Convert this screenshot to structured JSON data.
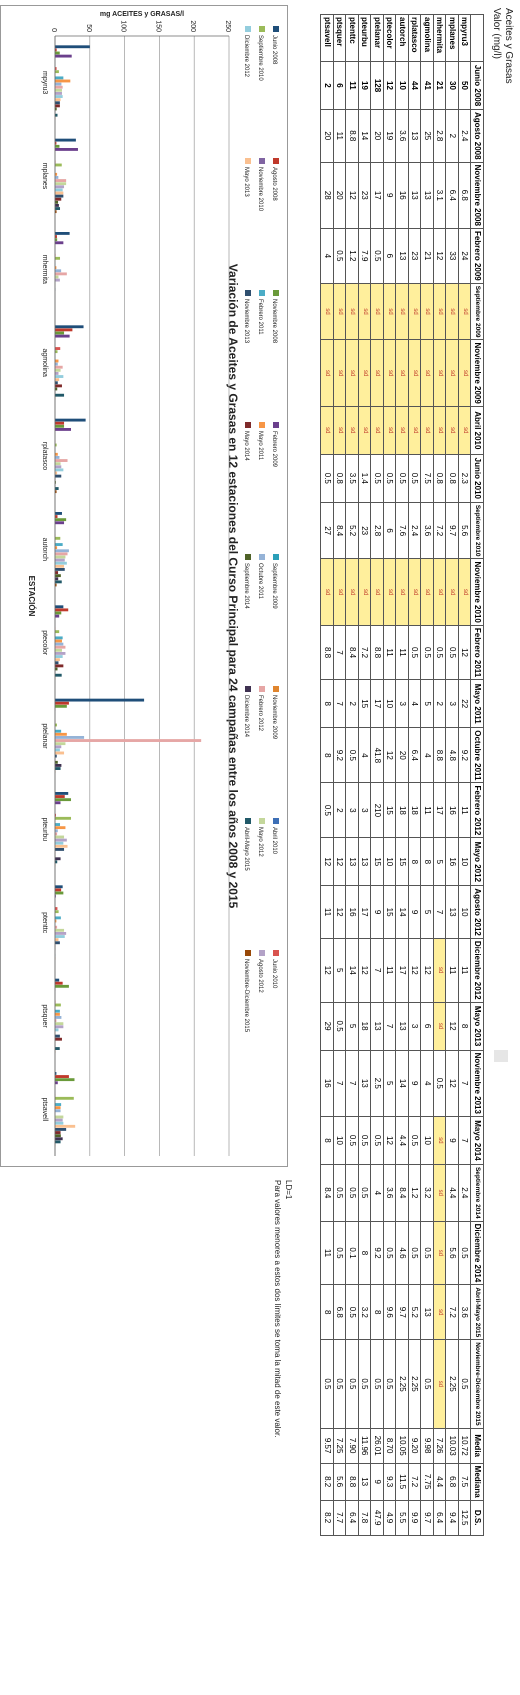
{
  "header": {
    "title": "Aceites y Grasas",
    "unit": "Valor (mg/l)"
  },
  "notes": [
    "LD=1",
    "Para valores menores a estos dos límites se toma la mitad de este valor."
  ],
  "table": {
    "columns": [
      "Junio 2008",
      "Agosto 2008",
      "Noviembre 2008",
      "Febrero 2009",
      "Septiembre 2009",
      "Noviembre 2009",
      "Abril 2010",
      "Junio 2010",
      "Septiembre 2010",
      "Noviembre 2010",
      "Febrero 2011",
      "Mayo 2011",
      "Octubre 2011",
      "Febrero 2012",
      "Mayo 2012",
      "Agosto 2012",
      "Diciembre 2012",
      "Mayo 2013",
      "Noviembre 2013",
      "Mayo 2014",
      "Septiembre 2014",
      "Diciembre 2014",
      "Abril-Mayo 2015",
      "Noviembre-Diciembre 2015",
      "Media",
      "Mediana",
      "D.S."
    ],
    "rows": [
      {
        "station": "mpyru3",
        "cells": [
          "50",
          "2.4",
          "6.8",
          "24",
          "sd",
          "sd",
          "sd",
          "2.3",
          "5.6",
          "sd",
          "12",
          "22",
          "9.2",
          "11",
          "10",
          "10",
          "11",
          "8",
          "7",
          "7",
          "2.4",
          "0.5",
          "3.6",
          "0.5",
          "10.72",
          "7.5",
          "12.5"
        ]
      },
      {
        "station": "mplanes",
        "cells": [
          "30",
          "2",
          "6.4",
          "33",
          "sd",
          "sd",
          "sd",
          "0.8",
          "9.7",
          "sd",
          "0.5",
          "3",
          "4.8",
          "16",
          "16",
          "13",
          "11",
          "12",
          "12",
          "9",
          "4.4",
          "5.6",
          "7.2",
          "2.25",
          "10.03",
          "6.8",
          "9.4"
        ]
      },
      {
        "station": "mhermita",
        "cells": [
          "21",
          "2.8",
          "3.1",
          "12",
          "sd",
          "sd",
          "sd",
          "0.8",
          "7.2",
          "sd",
          "0.5",
          "2",
          "8.8",
          "17",
          "5",
          "7",
          "sd",
          "sd",
          "0.5",
          "sd",
          "sd",
          "sd",
          "sd",
          "sd",
          "7.26",
          "4.4",
          "6.4"
        ]
      },
      {
        "station": "agmolina",
        "cells": [
          "41",
          "25",
          "13",
          "21",
          "sd",
          "sd",
          "sd",
          "7.5",
          "3.6",
          "sd",
          "0.5",
          "5",
          "4",
          "11",
          "8",
          "5",
          "12",
          "6",
          "4",
          "10",
          "3.2",
          "0.5",
          "13",
          "0.5",
          "9.98",
          "7.75",
          "9.7"
        ]
      },
      {
        "station": "rplatasco",
        "cells": [
          "44",
          "13",
          "13",
          "23",
          "sd",
          "sd",
          "sd",
          "0.5",
          "2.4",
          "sd",
          "0.5",
          "4",
          "6.4",
          "18",
          "8",
          "9",
          "12",
          "3",
          "9",
          "0.5",
          "1.2",
          "0.5",
          "5.2",
          "2.25",
          "9.20",
          "7.2",
          "9.9"
        ]
      },
      {
        "station": "autorch",
        "cells": [
          "10",
          "3.6",
          "16",
          "13",
          "sd",
          "sd",
          "sd",
          "0.5",
          "7.6",
          "sd",
          "11",
          "3",
          "20",
          "18",
          "15",
          "14",
          "17",
          "13",
          "14",
          "4.4",
          "8.4",
          "4.6",
          "9.7",
          "2.25",
          "10.05",
          "11.5",
          "5.5"
        ]
      },
      {
        "station": "ptecolor",
        "cells": [
          "12",
          "19",
          "9",
          "6",
          "sd",
          "sd",
          "sd",
          "0.5",
          "6",
          "sd",
          "11",
          "10",
          "12",
          "15",
          "10",
          "15",
          "11",
          "7",
          "5",
          "12",
          "3.6",
          "0.5",
          "9.6",
          "0.5",
          "8.70",
          "9.3",
          "4.9"
        ]
      },
      {
        "station": "ptelanar",
        "cells": [
          "128",
          "20",
          "17",
          "0.5",
          "sd",
          "sd",
          "sd",
          "0.5",
          "2.8",
          "sd",
          "8.8",
          "17",
          "41.8",
          "210",
          "15",
          "9",
          "7",
          "13",
          "2.5",
          "0.5",
          "4",
          "9.2",
          "8",
          "0.5",
          "26.01",
          "9",
          "47.9"
        ]
      },
      {
        "station": "pteurbu",
        "cells": [
          "19",
          "14",
          "23",
          "7.9",
          "sd",
          "sd",
          "sd",
          "1.4",
          "23",
          "sd",
          "7.2",
          "15",
          "4",
          "3",
          "13",
          "17",
          "12",
          "18",
          "13",
          "0.5",
          "0.5",
          "8",
          "3.2",
          "0.5",
          "11.96",
          "13",
          "7.8"
        ]
      },
      {
        "station": "ptenttc",
        "cells": [
          "11",
          "8.8",
          "12",
          "1.2",
          "sd",
          "sd",
          "sd",
          "3.5",
          "5.2",
          "sd",
          "8.4",
          "2",
          "0.5",
          "3",
          "13",
          "16",
          "14",
          "5",
          "7",
          "0.5",
          "0.5",
          "0.1",
          "0.5",
          "0.5",
          "7.90",
          "8.8",
          "6.4"
        ]
      },
      {
        "station": "ptsquer",
        "cells": [
          "6",
          "11",
          "20",
          "0.5",
          "sd",
          "sd",
          "sd",
          "0.8",
          "8.4",
          "sd",
          "7",
          "7",
          "9.2",
          "2",
          "12",
          "12",
          "5",
          "0.5",
          "7",
          "10",
          "0.5",
          "0.5",
          "6.8",
          "0.5",
          "7.25",
          "5.6",
          "7.7"
        ]
      },
      {
        "station": "ptsavell",
        "cells": [
          "2",
          "20",
          "28",
          "4",
          "sd",
          "sd",
          "sd",
          "0.5",
          "27",
          "sd",
          "8.8",
          "8",
          "8",
          "0.5",
          "12",
          "11",
          "12",
          "29",
          "16",
          "8",
          "8.4",
          "11",
          "8",
          "0.5",
          "9.57",
          "8.2",
          "8.2"
        ]
      }
    ]
  },
  "chart_data": {
    "type": "bar",
    "title": "Variación de Aceites y Grasas en 12 estaciones del Curso Principal para 24 campañas entre los años 2008 y 2015",
    "xlabel": "ESTACIÓN",
    "ylabel": "mg ACEITES y GRASAS/l",
    "ylim": [
      0,
      250
    ],
    "yticks": [
      0,
      50,
      100,
      150,
      200,
      250
    ],
    "categories": [
      "mpyru3",
      "mplanes",
      "mhermita",
      "agmolina",
      "rplatasco",
      "autorch",
      "ptecolor",
      "ptelanar",
      "pteurbu",
      "ptenttc",
      "ptsquer",
      "ptsavell"
    ],
    "series": [
      {
        "name": "Junio 2008",
        "color": "#1f4e79",
        "values": [
          50,
          30,
          21,
          41,
          44,
          10,
          12,
          128,
          19,
          11,
          6,
          2
        ]
      },
      {
        "name": "Agosto 2008",
        "color": "#c0392b",
        "values": [
          2.4,
          2,
          2.8,
          25,
          13,
          3.6,
          19,
          20,
          14,
          8.8,
          11,
          20
        ]
      },
      {
        "name": "Noviembre 2008",
        "color": "#6a9a3a",
        "values": [
          6.8,
          6.4,
          3.1,
          13,
          13,
          16,
          9,
          17,
          23,
          12,
          20,
          28
        ]
      },
      {
        "name": "Febrero 2009",
        "color": "#6b3f8c",
        "values": [
          24,
          33,
          12,
          21,
          23,
          13,
          6,
          0.5,
          7.9,
          1.2,
          0.5,
          4
        ]
      },
      {
        "name": "Septiembre 2009",
        "color": "#2a9fb8",
        "values": [
          0,
          0,
          0,
          0,
          0,
          0,
          0,
          0,
          0,
          0,
          0,
          0
        ]
      },
      {
        "name": "Noviembre 2009",
        "color": "#e0852e",
        "values": [
          0,
          0,
          0,
          0,
          0,
          0,
          0,
          0,
          0,
          0,
          0,
          0
        ]
      },
      {
        "name": "Abril 2010",
        "color": "#3d6fb6",
        "values": [
          0,
          0,
          0,
          0,
          0,
          0,
          0,
          0,
          0,
          0,
          0,
          0
        ]
      },
      {
        "name": "Junio 2010",
        "color": "#d9534f",
        "values": [
          2.3,
          0.8,
          0.8,
          7.5,
          0.5,
          0.5,
          0.5,
          0.5,
          1.4,
          3.5,
          0.8,
          0.5
        ]
      },
      {
        "name": "Septiembre 2010",
        "color": "#9bbb59",
        "values": [
          5.6,
          9.7,
          7.2,
          3.6,
          2.4,
          7.6,
          6,
          2.8,
          23,
          5.2,
          8.4,
          27
        ]
      },
      {
        "name": "Noviembre 2010",
        "color": "#8064a2",
        "values": [
          0,
          0,
          0,
          0,
          0,
          0,
          0,
          0,
          0,
          0,
          0,
          0
        ]
      },
      {
        "name": "Febrero 2011",
        "color": "#4bacc6",
        "values": [
          12,
          0.5,
          0.5,
          0.5,
          0.5,
          11,
          11,
          8.8,
          7.2,
          8.4,
          7,
          8.8
        ]
      },
      {
        "name": "Mayo 2011",
        "color": "#f79646",
        "values": [
          22,
          3,
          2,
          5,
          4,
          3,
          10,
          17,
          15,
          2,
          7,
          8
        ]
      },
      {
        "name": "Octubre 2011",
        "color": "#95b3d7",
        "values": [
          9.2,
          4.8,
          8.8,
          4,
          6.4,
          20,
          12,
          41.8,
          4,
          0.5,
          9.2,
          8
        ]
      },
      {
        "name": "Febrero 2012",
        "color": "#e6a6a5",
        "values": [
          11,
          16,
          17,
          11,
          18,
          18,
          15,
          210,
          3,
          3,
          2,
          0.5
        ]
      },
      {
        "name": "Mayo 2012",
        "color": "#c4d79b",
        "values": [
          10,
          16,
          5,
          8,
          8,
          15,
          10,
          15,
          13,
          13,
          12,
          12
        ]
      },
      {
        "name": "Agosto 2012",
        "color": "#b3a2c7",
        "values": [
          10,
          13,
          7,
          5,
          9,
          14,
          15,
          9,
          17,
          16,
          12,
          11
        ]
      },
      {
        "name": "Diciembre 2012",
        "color": "#93cddd",
        "values": [
          11,
          11,
          0,
          12,
          12,
          17,
          11,
          7,
          12,
          14,
          5,
          12
        ]
      },
      {
        "name": "Mayo 2013",
        "color": "#fac090",
        "values": [
          8,
          12,
          0,
          6,
          3,
          13,
          7,
          13,
          18,
          5,
          0.5,
          29
        ]
      },
      {
        "name": "Noviembre 2013",
        "color": "#2f4f6f",
        "values": [
          7,
          12,
          0.5,
          4,
          9,
          14,
          5,
          2.5,
          13,
          7,
          7,
          16
        ]
      },
      {
        "name": "Mayo 2014",
        "color": "#7f2a2a",
        "values": [
          7,
          9,
          0,
          10,
          0.5,
          4.4,
          12,
          0.5,
          0.5,
          0.5,
          10,
          8
        ]
      },
      {
        "name": "Septiembre 2014",
        "color": "#4f6228",
        "values": [
          2.4,
          4.4,
          0,
          3.2,
          1.2,
          8.4,
          3.6,
          4,
          0.5,
          0.5,
          0.5,
          8.4
        ]
      },
      {
        "name": "Diciembre 2014",
        "color": "#3f3151",
        "values": [
          0.5,
          5.6,
          0,
          0.5,
          0.5,
          4.6,
          0.5,
          9.2,
          8,
          0.1,
          0.5,
          11
        ]
      },
      {
        "name": "Abril-Mayo 2015",
        "color": "#215968",
        "values": [
          3.6,
          7.2,
          0,
          13,
          5.2,
          9.7,
          9.6,
          8,
          3.2,
          0.5,
          6.8,
          8
        ]
      },
      {
        "name": "Noviembre-Diciembre 2015",
        "color": "#984807",
        "values": [
          0.5,
          2.25,
          0,
          0.5,
          2.25,
          2.25,
          0.5,
          0.5,
          0.5,
          0.5,
          0.5,
          0.5
        ]
      }
    ],
    "legend_position": "top",
    "grid": true
  }
}
